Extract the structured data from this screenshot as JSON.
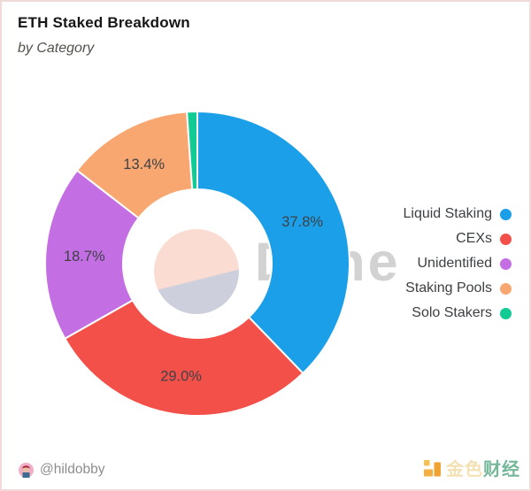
{
  "header": {
    "title": "ETH Staked Breakdown",
    "subtitle": "by Category"
  },
  "watermark": {
    "text": "Dune",
    "color": "#d2d2d2"
  },
  "chart_data": {
    "type": "pie",
    "donut": true,
    "title": "ETH Staked Breakdown",
    "subtitle": "by Category",
    "legend_position": "right",
    "categories": [
      "Liquid Staking",
      "CEXs",
      "Unidentified",
      "Staking Pools",
      "Solo Stakers"
    ],
    "values": [
      37.8,
      29.0,
      18.7,
      13.4,
      1.1
    ],
    "percent_labels": [
      "37.8%",
      "29.0%",
      "18.7%",
      "13.4%",
      ""
    ],
    "colors": [
      "#1a9fe8",
      "#f4504a",
      "#c46ee4",
      "#f9a771",
      "#12cb94"
    ],
    "label_color": "#3e4247"
  },
  "center_badge": {
    "top_color": "#fadcd3",
    "bottom_color": "#cdd0dc"
  },
  "footer": {
    "author_handle": "@hildobby",
    "logo_text_gold": "金色",
    "logo_text_green": "财经",
    "logo_icon_color": "#f4a72d"
  }
}
